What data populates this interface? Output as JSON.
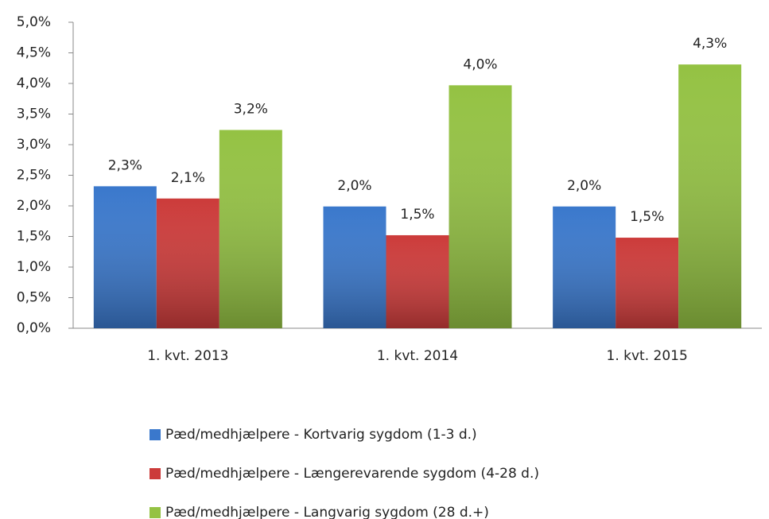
{
  "chart_data": {
    "type": "bar",
    "categories": [
      "1. kvt. 2013",
      "1. kvt. 2014",
      "1. kvt. 2015"
    ],
    "series": [
      {
        "name": "Pæd/medhjælpere - Kortvarig sygdom (1-3 d.)",
        "color": "#3a78cc",
        "values": [
          2.32,
          1.99,
          1.99
        ],
        "value_labels": [
          "2,3%",
          "2,0%",
          "2,0%"
        ]
      },
      {
        "name": "Pæd/medhjælpere - Længerevarende sygdom (4-28 d.)",
        "color": "#cc3b3a",
        "values": [
          2.12,
          1.52,
          1.48
        ],
        "value_labels": [
          "2,1%",
          "1,5%",
          "1,5%"
        ]
      },
      {
        "name": "Pæd/medhjælpere - Langvarig sygdom (28 d.+)",
        "color": "#94c243",
        "values": [
          3.24,
          3.97,
          4.31
        ],
        "value_labels": [
          "3,2%",
          "4,0%",
          "4,3%"
        ]
      }
    ],
    "ylim": [
      0,
      5
    ],
    "yticks": [
      {
        "value": 0,
        "label": "0,0%"
      },
      {
        "value": 0.5,
        "label": "0,5%"
      },
      {
        "value": 1,
        "label": "1,0%"
      },
      {
        "value": 1.5,
        "label": "1,5%"
      },
      {
        "value": 2,
        "label": "2,0%"
      },
      {
        "value": 2.5,
        "label": "2,5%"
      },
      {
        "value": 3,
        "label": "3,0%"
      },
      {
        "value": 3.5,
        "label": "3,5%"
      },
      {
        "value": 4,
        "label": "4,0%"
      },
      {
        "value": 4.5,
        "label": "4,5%"
      },
      {
        "value": 5,
        "label": "5,0%"
      }
    ],
    "grid": false
  }
}
